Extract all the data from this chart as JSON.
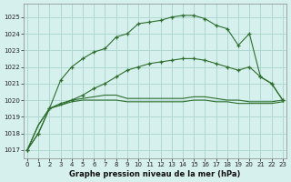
{
  "title": "Graphe pression niveau de la mer (hPa)",
  "background_color": "#d6f0ee",
  "grid_color": "#b0d8d0",
  "line_color": "#2d6e2d",
  "x_ticks": [
    0,
    1,
    2,
    3,
    4,
    5,
    6,
    7,
    8,
    9,
    10,
    11,
    12,
    13,
    14,
    15,
    16,
    17,
    18,
    19,
    20,
    21,
    22,
    23
  ],
  "y_ticks": [
    1017,
    1018,
    1019,
    1020,
    1021,
    1022,
    1023,
    1024,
    1025
  ],
  "ylim": [
    1016.5,
    1025.8
  ],
  "xlim": [
    -0.3,
    23.3
  ],
  "series_top": [
    1017.0,
    1018.0,
    1019.5,
    1021.2,
    1022.0,
    1022.5,
    1022.9,
    1023.1,
    1023.8,
    1024.0,
    1024.6,
    1024.7,
    1024.8,
    1025.0,
    1025.1,
    1025.1,
    1024.9,
    1024.5,
    1024.3,
    1023.3,
    1024.0,
    1021.4,
    1021.0,
    1020.0
  ],
  "series_mid": [
    1017.0,
    1018.0,
    1019.5,
    1019.8,
    1020.0,
    1020.3,
    1020.7,
    1021.0,
    1021.4,
    1021.8,
    1022.0,
    1022.2,
    1022.3,
    1022.4,
    1022.5,
    1022.5,
    1022.4,
    1022.2,
    1022.0,
    1021.8,
    1022.0,
    1021.4,
    1021.0,
    1020.0
  ],
  "series_flat1": [
    1017.0,
    1018.5,
    1019.5,
    1019.7,
    1020.0,
    1020.1,
    1020.2,
    1020.3,
    1020.3,
    1020.1,
    1020.1,
    1020.1,
    1020.1,
    1020.1,
    1020.1,
    1020.2,
    1020.2,
    1020.1,
    1020.0,
    1020.0,
    1019.9,
    1019.9,
    1019.9,
    1020.0
  ],
  "series_flat2": [
    1017.0,
    1018.5,
    1019.5,
    1019.7,
    1019.9,
    1020.0,
    1020.0,
    1020.0,
    1020.0,
    1019.9,
    1019.9,
    1019.9,
    1019.9,
    1019.9,
    1019.9,
    1020.0,
    1020.0,
    1019.9,
    1019.9,
    1019.8,
    1019.8,
    1019.8,
    1019.8,
    1019.9
  ]
}
